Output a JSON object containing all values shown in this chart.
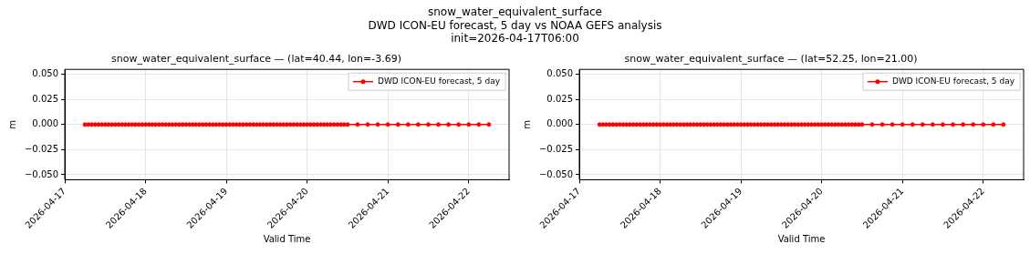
{
  "chart_data": [
    {
      "type": "line",
      "title": "snow_water_equivalent_surface — (lat=40.44, lon=-3.69)",
      "xlabel": "Valid Time",
      "ylabel": "m",
      "annotations": [
        "snow_water_equivalent_surface",
        "DWD ICON-EU forecast, 5 day vs NOAA GEFS analysis",
        "init=2026-04-17T06:00"
      ],
      "x": [
        "2026-04-17T06:00",
        "2026-04-17T07:00",
        "2026-04-17T08:00",
        "2026-04-17T09:00",
        "2026-04-17T10:00",
        "2026-04-17T11:00",
        "2026-04-17T12:00",
        "2026-04-17T13:00",
        "2026-04-17T14:00",
        "2026-04-17T15:00",
        "2026-04-17T16:00",
        "2026-04-17T17:00",
        "2026-04-17T18:00",
        "2026-04-17T19:00",
        "2026-04-17T20:00",
        "2026-04-17T21:00",
        "2026-04-17T22:00",
        "2026-04-17T23:00",
        "2026-04-18T00:00",
        "2026-04-18T01:00",
        "2026-04-18T02:00",
        "2026-04-18T03:00",
        "2026-04-18T04:00",
        "2026-04-18T05:00",
        "2026-04-18T06:00",
        "2026-04-18T07:00",
        "2026-04-18T08:00",
        "2026-04-18T09:00",
        "2026-04-18T10:00",
        "2026-04-18T11:00",
        "2026-04-18T12:00",
        "2026-04-18T13:00",
        "2026-04-18T14:00",
        "2026-04-18T15:00",
        "2026-04-18T16:00",
        "2026-04-18T17:00",
        "2026-04-18T18:00",
        "2026-04-18T19:00",
        "2026-04-18T20:00",
        "2026-04-18T21:00",
        "2026-04-18T22:00",
        "2026-04-18T23:00",
        "2026-04-19T00:00",
        "2026-04-19T01:00",
        "2026-04-19T02:00",
        "2026-04-19T03:00",
        "2026-04-19T04:00",
        "2026-04-19T05:00",
        "2026-04-19T06:00",
        "2026-04-19T07:00",
        "2026-04-19T08:00",
        "2026-04-19T09:00",
        "2026-04-19T10:00",
        "2026-04-19T11:00",
        "2026-04-19T12:00",
        "2026-04-19T13:00",
        "2026-04-19T14:00",
        "2026-04-19T15:00",
        "2026-04-19T16:00",
        "2026-04-19T17:00",
        "2026-04-19T18:00",
        "2026-04-19T19:00",
        "2026-04-19T20:00",
        "2026-04-19T21:00",
        "2026-04-19T22:00",
        "2026-04-19T23:00",
        "2026-04-20T00:00",
        "2026-04-20T01:00",
        "2026-04-20T02:00",
        "2026-04-20T03:00",
        "2026-04-20T04:00",
        "2026-04-20T05:00",
        "2026-04-20T06:00",
        "2026-04-20T07:00",
        "2026-04-20T08:00",
        "2026-04-20T09:00",
        "2026-04-20T10:00",
        "2026-04-20T11:00",
        "2026-04-20T12:00",
        "2026-04-20T15:00",
        "2026-04-20T18:00",
        "2026-04-20T21:00",
        "2026-04-21T00:00",
        "2026-04-21T03:00",
        "2026-04-21T06:00",
        "2026-04-21T09:00",
        "2026-04-21T12:00",
        "2026-04-21T15:00",
        "2026-04-21T18:00",
        "2026-04-21T21:00",
        "2026-04-22T00:00",
        "2026-04-22T03:00",
        "2026-04-22T06:00"
      ],
      "series": [
        {
          "name": "DWD ICON-EU forecast, 5 day",
          "color": "#ff0000",
          "values": [
            0,
            0,
            0,
            0,
            0,
            0,
            0,
            0,
            0,
            0,
            0,
            0,
            0,
            0,
            0,
            0,
            0,
            0,
            0,
            0,
            0,
            0,
            0,
            0,
            0,
            0,
            0,
            0,
            0,
            0,
            0,
            0,
            0,
            0,
            0,
            0,
            0,
            0,
            0,
            0,
            0,
            0,
            0,
            0,
            0,
            0,
            0,
            0,
            0,
            0,
            0,
            0,
            0,
            0,
            0,
            0,
            0,
            0,
            0,
            0,
            0,
            0,
            0,
            0,
            0,
            0,
            0,
            0,
            0,
            0,
            0,
            0,
            0,
            0,
            0,
            0,
            0,
            0,
            0,
            0,
            0,
            0,
            0,
            0,
            0,
            0,
            0,
            0,
            0,
            0,
            0,
            0,
            0
          ]
        }
      ],
      "xlim": [
        "2026-04-17T00:00",
        "2026-04-22T12:00"
      ],
      "xticks": [
        "2026-04-17",
        "2026-04-18",
        "2026-04-19",
        "2026-04-20",
        "2026-04-21",
        "2026-04-22"
      ],
      "ylim": [
        -0.055,
        0.055
      ],
      "yticks": [
        {
          "value": -0.05,
          "label": "−0.050"
        },
        {
          "value": -0.025,
          "label": "−0.025"
        },
        {
          "value": 0,
          "label": "0.000"
        },
        {
          "value": 0.025,
          "label": "0.025"
        },
        {
          "value": 0.05,
          "label": "0.050"
        }
      ],
      "grid": true,
      "legend": "top right",
      "marker": "circle",
      "line_style": "solid"
    },
    {
      "type": "line",
      "title": "snow_water_equivalent_surface — (lat=52.25, lon=21.00)",
      "xlabel": "Valid Time",
      "ylabel": "m",
      "x": [
        "2026-04-17T06:00",
        "2026-04-17T07:00",
        "2026-04-17T08:00",
        "2026-04-17T09:00",
        "2026-04-17T10:00",
        "2026-04-17T11:00",
        "2026-04-17T12:00",
        "2026-04-17T13:00",
        "2026-04-17T14:00",
        "2026-04-17T15:00",
        "2026-04-17T16:00",
        "2026-04-17T17:00",
        "2026-04-17T18:00",
        "2026-04-17T19:00",
        "2026-04-17T20:00",
        "2026-04-17T21:00",
        "2026-04-17T22:00",
        "2026-04-17T23:00",
        "2026-04-18T00:00",
        "2026-04-18T01:00",
        "2026-04-18T02:00",
        "2026-04-18T03:00",
        "2026-04-18T04:00",
        "2026-04-18T05:00",
        "2026-04-18T06:00",
        "2026-04-18T07:00",
        "2026-04-18T08:00",
        "2026-04-18T09:00",
        "2026-04-18T10:00",
        "2026-04-18T11:00",
        "2026-04-18T12:00",
        "2026-04-18T13:00",
        "2026-04-18T14:00",
        "2026-04-18T15:00",
        "2026-04-18T16:00",
        "2026-04-18T17:00",
        "2026-04-18T18:00",
        "2026-04-18T19:00",
        "2026-04-18T20:00",
        "2026-04-18T21:00",
        "2026-04-18T22:00",
        "2026-04-18T23:00",
        "2026-04-19T00:00",
        "2026-04-19T01:00",
        "2026-04-19T02:00",
        "2026-04-19T03:00",
        "2026-04-19T04:00",
        "2026-04-19T05:00",
        "2026-04-19T06:00",
        "2026-04-19T07:00",
        "2026-04-19T08:00",
        "2026-04-19T09:00",
        "2026-04-19T10:00",
        "2026-04-19T11:00",
        "2026-04-19T12:00",
        "2026-04-19T13:00",
        "2026-04-19T14:00",
        "2026-04-19T15:00",
        "2026-04-19T16:00",
        "2026-04-19T17:00",
        "2026-04-19T18:00",
        "2026-04-19T19:00",
        "2026-04-19T20:00",
        "2026-04-19T21:00",
        "2026-04-19T22:00",
        "2026-04-19T23:00",
        "2026-04-20T00:00",
        "2026-04-20T01:00",
        "2026-04-20T02:00",
        "2026-04-20T03:00",
        "2026-04-20T04:00",
        "2026-04-20T05:00",
        "2026-04-20T06:00",
        "2026-04-20T07:00",
        "2026-04-20T08:00",
        "2026-04-20T09:00",
        "2026-04-20T10:00",
        "2026-04-20T11:00",
        "2026-04-20T12:00",
        "2026-04-20T15:00",
        "2026-04-20T18:00",
        "2026-04-20T21:00",
        "2026-04-21T00:00",
        "2026-04-21T03:00",
        "2026-04-21T06:00",
        "2026-04-21T09:00",
        "2026-04-21T12:00",
        "2026-04-21T15:00",
        "2026-04-21T18:00",
        "2026-04-21T21:00",
        "2026-04-22T00:00",
        "2026-04-22T03:00",
        "2026-04-22T06:00"
      ],
      "series": [
        {
          "name": "DWD ICON-EU forecast, 5 day",
          "color": "#ff0000",
          "values": [
            0,
            0,
            0,
            0,
            0,
            0,
            0,
            0,
            0,
            0,
            0,
            0,
            0,
            0,
            0,
            0,
            0,
            0,
            0,
            0,
            0,
            0,
            0,
            0,
            0,
            0,
            0,
            0,
            0,
            0,
            0,
            0,
            0,
            0,
            0,
            0,
            0,
            0,
            0,
            0,
            0,
            0,
            0,
            0,
            0,
            0,
            0,
            0,
            0,
            0,
            0,
            0,
            0,
            0,
            0,
            0,
            0,
            0,
            0,
            0,
            0,
            0,
            0,
            0,
            0,
            0,
            0,
            0,
            0,
            0,
            0,
            0,
            0,
            0,
            0,
            0,
            0,
            0,
            0,
            0,
            0,
            0,
            0,
            0,
            0,
            0,
            0,
            0,
            0,
            0,
            0,
            0,
            0
          ]
        }
      ],
      "xlim": [
        "2026-04-17T00:00",
        "2026-04-22T12:00"
      ],
      "xticks": [
        "2026-04-17",
        "2026-04-18",
        "2026-04-19",
        "2026-04-20",
        "2026-04-21",
        "2026-04-22"
      ],
      "ylim": [
        -0.055,
        0.055
      ],
      "yticks": [
        {
          "value": -0.05,
          "label": "−0.050"
        },
        {
          "value": -0.025,
          "label": "−0.025"
        },
        {
          "value": 0,
          "label": "0.000"
        },
        {
          "value": 0.025,
          "label": "0.025"
        },
        {
          "value": 0.05,
          "label": "0.050"
        }
      ],
      "grid": true,
      "legend": "top right",
      "marker": "circle",
      "line_style": "solid"
    }
  ]
}
